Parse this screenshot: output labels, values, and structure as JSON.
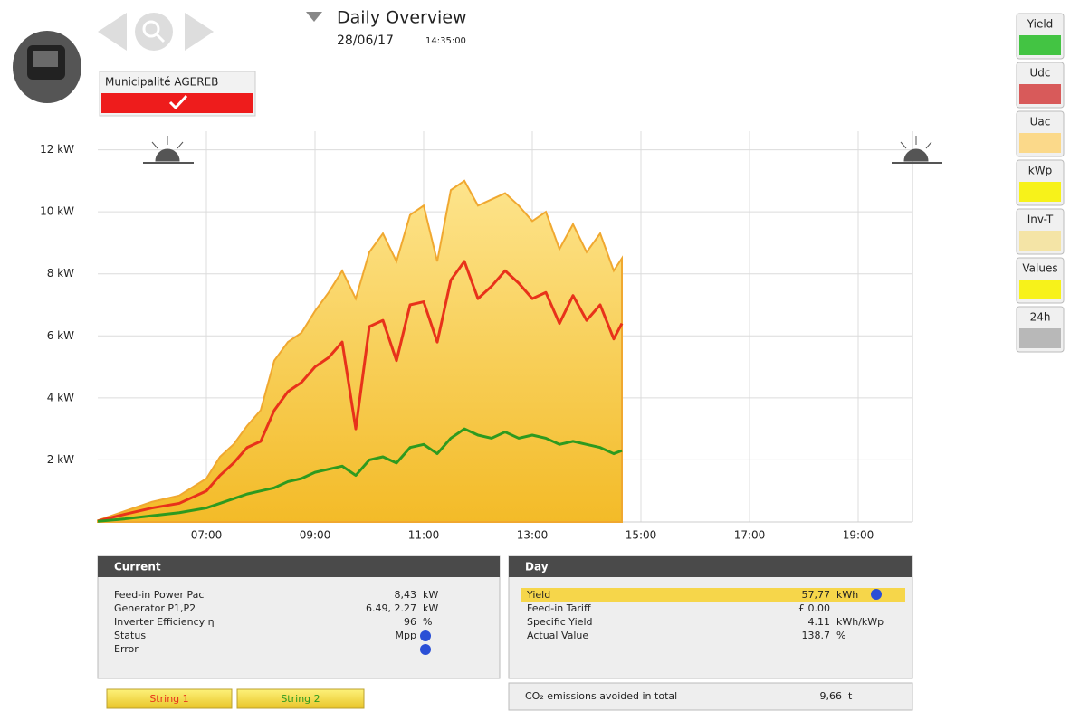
{
  "header": {
    "title": "Daily Overview",
    "date": "28/06/17",
    "time": "14:35:00",
    "plant": "Municipalité AGEREB"
  },
  "chart_data": {
    "type": "area",
    "x": [
      5.0,
      5.5,
      6.0,
      6.5,
      7.0,
      7.25,
      7.5,
      7.75,
      8.0,
      8.25,
      8.5,
      8.75,
      9.0,
      9.25,
      9.5,
      9.75,
      10.0,
      10.25,
      10.5,
      10.75,
      11.0,
      11.25,
      11.5,
      11.75,
      12.0,
      12.25,
      12.5,
      12.75,
      13.0,
      13.25,
      13.5,
      13.75,
      14.0,
      14.25,
      14.5,
      14.65
    ],
    "series": [
      {
        "type": "area",
        "color": "#f5c53a",
        "values": [
          0.05,
          0.35,
          0.65,
          0.85,
          1.4,
          2.1,
          2.5,
          3.1,
          3.6,
          5.2,
          5.8,
          6.1,
          6.8,
          7.4,
          8.1,
          7.2,
          8.7,
          9.3,
          8.4,
          9.9,
          10.2,
          8.4,
          10.7,
          11.0,
          10.2,
          10.4,
          10.6,
          10.2,
          9.7,
          10.0,
          8.8,
          9.6,
          8.7,
          9.3,
          8.1,
          8.5
        ]
      },
      {
        "type": "line",
        "color": "#e8321a",
        "values": [
          0.03,
          0.25,
          0.45,
          0.6,
          1.0,
          1.5,
          1.9,
          2.4,
          2.6,
          3.6,
          4.2,
          4.5,
          5.0,
          5.3,
          5.8,
          3.0,
          6.3,
          6.5,
          5.2,
          7.0,
          7.1,
          5.8,
          7.8,
          8.4,
          7.2,
          7.6,
          8.1,
          7.7,
          7.2,
          7.4,
          6.4,
          7.3,
          6.5,
          7.0,
          5.9,
          6.4
        ]
      },
      {
        "type": "line",
        "color": "#2e9a1f",
        "values": [
          0.02,
          0.1,
          0.2,
          0.3,
          0.45,
          0.6,
          0.75,
          0.9,
          1.0,
          1.1,
          1.3,
          1.4,
          1.6,
          1.7,
          1.8,
          1.5,
          2.0,
          2.1,
          1.9,
          2.4,
          2.5,
          2.2,
          2.7,
          3.0,
          2.8,
          2.7,
          2.9,
          2.7,
          2.8,
          2.7,
          2.5,
          2.6,
          2.5,
          2.4,
          2.2,
          2.3
        ]
      }
    ],
    "xlim": [
      5,
      20
    ],
    "xticks": [
      {
        "value": 7,
        "label": "07:00"
      },
      {
        "value": 9,
        "label": "09:00"
      },
      {
        "value": 11,
        "label": "11:00"
      },
      {
        "value": 13,
        "label": "13:00"
      },
      {
        "value": 15,
        "label": "15:00"
      },
      {
        "value": 17,
        "label": "17:00"
      },
      {
        "value": 19,
        "label": "19:00"
      }
    ],
    "ylim": [
      0,
      12.6
    ],
    "yticks": [
      {
        "value": 2,
        "label": "2 kW"
      },
      {
        "value": 4,
        "label": "4 kW"
      },
      {
        "value": 6,
        "label": "6 kW"
      },
      {
        "value": 8,
        "label": "8 kW"
      },
      {
        "value": 10,
        "label": "10 kW"
      },
      {
        "value": 12,
        "label": "12 kW"
      }
    ],
    "grid": true
  },
  "side_buttons": [
    {
      "label": "Yield",
      "color": "#43c443"
    },
    {
      "label": "Udc",
      "color": "#d85a5a"
    },
    {
      "label": "Uac",
      "color": "#fbd98a"
    },
    {
      "label": "kWp",
      "color": "#f7f21a"
    },
    {
      "label": "Inv-T",
      "color": "#f4e4a6"
    },
    {
      "label": "Values",
      "color": "#f7f21a"
    },
    {
      "label": "24h",
      "color": "#b8b8b8"
    }
  ],
  "current": {
    "title": "Current",
    "rows": [
      {
        "label": "Feed-in Power Pac",
        "value": "8,43",
        "unit": "kW"
      },
      {
        "label": "Generator P1,P2",
        "value": "6.49, 2.27",
        "unit": "kW"
      },
      {
        "label": "Inverter Efficiency η",
        "value": "96",
        "unit": "%"
      },
      {
        "label": "Status",
        "value": "Mpp"
      },
      {
        "label": "Error"
      }
    ]
  },
  "day": {
    "title": "Day",
    "rows": [
      {
        "label": "Yield",
        "value": "57,77",
        "unit": "kWh"
      },
      {
        "label": "Feed-in Tariff",
        "value": "£ 0.00"
      },
      {
        "label": "Specific Yield",
        "value": "4.11",
        "unit": "kWh/kWp"
      },
      {
        "label": "Actual Value",
        "value": "138.7",
        "unit": "%"
      }
    ]
  },
  "co2": {
    "label": "CO₂ emissions avoided in total",
    "value": "9,66",
    "unit": "t"
  },
  "strings": [
    "String 1",
    "String 2"
  ]
}
